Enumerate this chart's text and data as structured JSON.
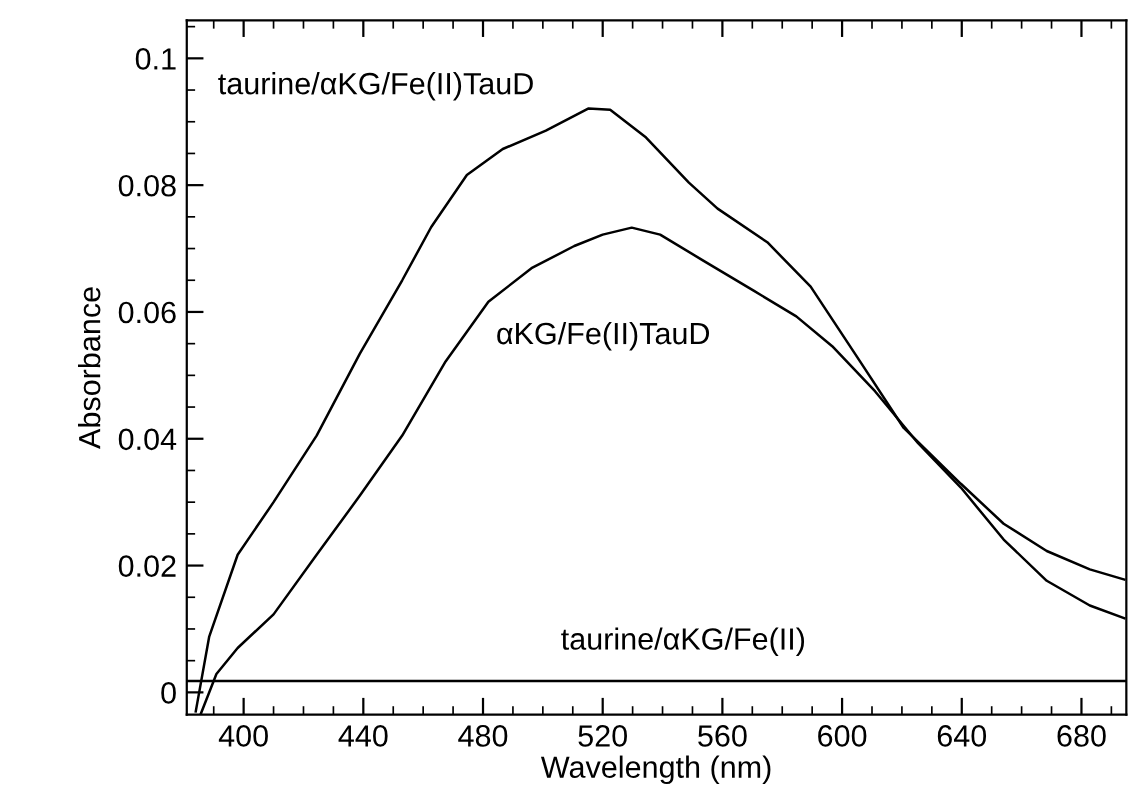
{
  "chart_data": {
    "type": "line",
    "xlabel": "Wavelength (nm)",
    "ylabel": "Absorbance",
    "xlim": [
      381,
      695
    ],
    "ylim": [
      -0.0035,
      0.106
    ],
    "xticks": [
      400,
      440,
      480,
      520,
      560,
      600,
      640,
      680
    ],
    "yticks": [
      {
        "value": 0,
        "label": "0"
      },
      0.02,
      0.04,
      0.06,
      0.08,
      0.1
    ],
    "grid": false,
    "legend": false,
    "marker": "none",
    "line_style": "solid",
    "series": [
      {
        "color": "#000000",
        "x": [
          384,
          388.5,
          398,
          410,
          424.4,
          438.8,
          453,
          462.7,
          474.6,
          486.6,
          501,
          515.3,
          522.5,
          534.5,
          548.8,
          558.4,
          575,
          589.5,
          606,
          620.6,
          639.7,
          654,
          668.4,
          682.8,
          694.3
        ],
        "values": [
          -0.003,
          0.0088,
          0.0217,
          0.03,
          0.0405,
          0.0534,
          0.065,
          0.0734,
          0.0816,
          0.0857,
          0.0886,
          0.0921,
          0.0919,
          0.0875,
          0.0804,
          0.0763,
          0.071,
          0.064,
          0.0522,
          0.0417,
          0.0329,
          0.0266,
          0.0223,
          0.0194,
          0.0178
        ]
      },
      {
        "color": "#000000",
        "x": [
          385.6,
          390.9,
          398,
          410,
          424.4,
          438.8,
          453,
          467.5,
          481.8,
          496.2,
          510.5,
          520,
          529.7,
          539.2,
          553.6,
          570.3,
          584.7,
          596.7,
          611,
          625.4,
          639.7,
          654,
          668.4,
          682.8,
          694.3
        ],
        "values": [
          -0.0035,
          0.0029,
          0.007,
          0.0123,
          0.0217,
          0.031,
          0.0405,
          0.0522,
          0.0616,
          0.0669,
          0.0704,
          0.0722,
          0.0733,
          0.0722,
          0.0681,
          0.0634,
          0.0593,
          0.0546,
          0.0475,
          0.0393,
          0.0323,
          0.0241,
          0.0176,
          0.0137,
          0.0117
        ]
      },
      {
        "color": "#000000",
        "x": [
          381,
          695
        ],
        "values": [
          0.0018,
          0.0018
        ]
      }
    ],
    "annotations": [
      "taurine/αKG/Fe(II)TauD",
      "αKG/Fe(II)TauD",
      "taurine/αKG/Fe(II)"
    ]
  }
}
